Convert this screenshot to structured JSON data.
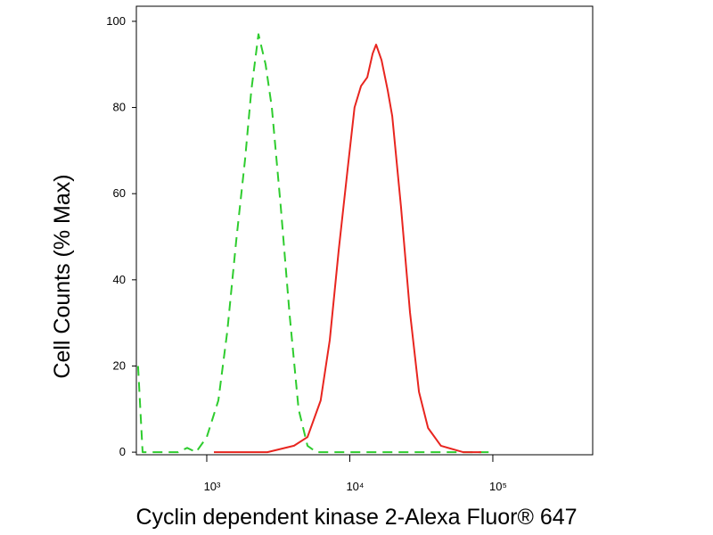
{
  "chart_data": {
    "type": "line",
    "x_label": "Cyclin dependent kinase 2-Alexa Fluor® 647",
    "y_label": "Cell Counts (% Max)",
    "xscale": "log",
    "xlim": [
      322,
      499000
    ],
    "ylim": [
      -0.6,
      103.5
    ],
    "xticks": [
      {
        "value": 1000,
        "label": "10³"
      },
      {
        "value": 10000,
        "label": "10⁴"
      },
      {
        "value": 100000,
        "label": "10⁵"
      }
    ],
    "yticks": [
      0,
      20,
      40,
      60,
      80,
      100
    ],
    "grid": false,
    "series": [
      {
        "color": "#2ecc2e",
        "dash": true,
        "x": [
          331,
          356,
          474,
          632,
          730,
          842,
          1000,
          1205,
          1391,
          1606,
          1853,
          2049,
          2298,
          2577,
          2850,
          3289,
          3794,
          4385,
          5058,
          5838,
          11140,
          22800,
          95700
        ],
        "values": [
          20,
          0,
          0,
          0,
          1,
          0,
          3.5,
          12,
          28,
          49,
          68,
          84,
          97,
          90,
          80,
          57,
          32,
          10,
          1.5,
          0,
          0,
          0,
          0
        ]
      },
      {
        "color": "#e8251f",
        "dash": false,
        "x": [
          1122,
          2652,
          4073,
          5058,
          6260,
          7239,
          8370,
          9680,
          10800,
          11980,
          13250,
          14440,
          15280,
          16670,
          18420,
          19810,
          22800,
          26350,
          30470,
          35240,
          43340,
          62000,
          83000
        ],
        "values": [
          0,
          0,
          1.5,
          3.5,
          12,
          26,
          47,
          66,
          80,
          85,
          87,
          92.5,
          94.6,
          91,
          84,
          78,
          57,
          32.5,
          14,
          5.6,
          1.5,
          0,
          0
        ]
      }
    ]
  }
}
